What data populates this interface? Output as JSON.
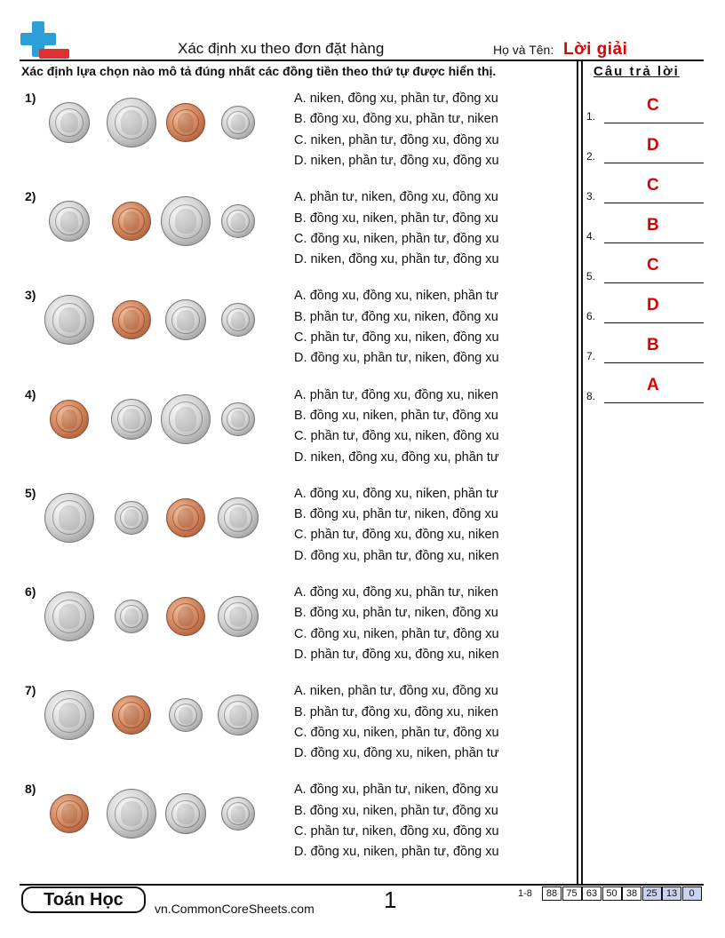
{
  "header": {
    "title": "Xác định xu theo đơn đặt hàng",
    "name_label": "Họ và Tên:",
    "name_value": "Lời giải"
  },
  "instructions": "Xác định lựa chọn nào mô tả đúng nhất các đồng tiền theo thứ tự được hiển thị.",
  "answer_header": "Câu trả lời",
  "questions": [
    {
      "number": "1)",
      "coins": [
        "nickel",
        "quarter",
        "penny",
        "dime"
      ],
      "options": [
        "A. niken, đồng xu, phần tư, đồng xu",
        "B. đồng xu, đồng xu, phần tư, niken",
        "C. niken, phần tư, đồng xu, đồng xu",
        "D. niken, phần tư, đồng xu, đồng xu"
      ]
    },
    {
      "number": "2)",
      "coins": [
        "nickel",
        "penny",
        "quarter",
        "dime"
      ],
      "options": [
        "A. phần tư, niken, đồng xu, đồng xu",
        "B. đồng xu, niken, phần tư, đồng xu",
        "C. đồng xu, niken, phần tư, đồng xu",
        "D. niken, đồng xu, phần tư, đồng xu"
      ]
    },
    {
      "number": "3)",
      "coins": [
        "quarter",
        "penny",
        "nickel",
        "dime"
      ],
      "options": [
        "A. đồng xu, đồng xu, niken, phần tư",
        "B. phần tư, đồng xu, niken, đồng xu",
        "C. phần tư, đồng xu, niken, đồng xu",
        "D. đồng xu, phần tư, niken, đồng xu"
      ]
    },
    {
      "number": "4)",
      "coins": [
        "penny",
        "nickel",
        "quarter",
        "dime"
      ],
      "options": [
        "A. phần tư, đồng xu, đồng xu, niken",
        "B. đồng xu, niken, phần tư, đồng xu",
        "C. phần tư, đồng xu, niken, đồng xu",
        "D. niken, đồng xu, đồng xu, phần tư"
      ]
    },
    {
      "number": "5)",
      "coins": [
        "quarter",
        "dime",
        "penny",
        "nickel"
      ],
      "options": [
        "A. đồng xu, đồng xu, niken, phần tư",
        "B. đồng xu, phần tư, niken, đồng xu",
        "C. phần tư, đồng xu, đồng xu, niken",
        "D. đồng xu, phần tư, đồng xu, niken"
      ]
    },
    {
      "number": "6)",
      "coins": [
        "quarter",
        "dime",
        "penny",
        "nickel"
      ],
      "options": [
        "A. đồng xu, đồng xu, phần tư, niken",
        "B. đồng xu, phần tư, niken, đồng xu",
        "C. đồng xu, niken, phần tư, đồng xu",
        "D. phần tư, đồng xu, đồng xu, niken"
      ]
    },
    {
      "number": "7)",
      "coins": [
        "quarter",
        "penny",
        "dime",
        "nickel"
      ],
      "options": [
        "A. niken, phần tư, đồng xu, đồng xu",
        "B. phần tư, đồng xu, đồng xu, niken",
        "C. đồng xu, niken, phần tư, đồng xu",
        "D. đồng xu, đồng xu, niken, phần tư"
      ]
    },
    {
      "number": "8)",
      "coins": [
        "penny",
        "quarter",
        "nickel",
        "dime"
      ],
      "options": [
        "A. đồng xu, phần tư, niken, đồng xu",
        "B. đồng xu, niken, phần tư, đồng xu",
        "C. phần tư, niken, đồng xu, đồng xu",
        "D. đồng xu, niken, phần tư, đồng xu"
      ]
    }
  ],
  "answers": [
    {
      "number": "1.",
      "value": "C"
    },
    {
      "number": "2.",
      "value": "D"
    },
    {
      "number": "3.",
      "value": "C"
    },
    {
      "number": "4.",
      "value": "B"
    },
    {
      "number": "5.",
      "value": "C"
    },
    {
      "number": "6.",
      "value": "D"
    },
    {
      "number": "7.",
      "value": "B"
    },
    {
      "number": "8.",
      "value": "A"
    }
  ],
  "footer": {
    "brand": "Toán Học",
    "url": "vn.CommonCoreSheets.com",
    "page": "1",
    "range": "1-8",
    "scores": [
      "88",
      "75",
      "63",
      "50",
      "38",
      "25",
      "13",
      "0"
    ]
  },
  "colors": {
    "answer_red": "#e00000",
    "score_blue": "#c7d3ef",
    "logo_blue": "#2a9fd8",
    "logo_red": "#e03030"
  }
}
